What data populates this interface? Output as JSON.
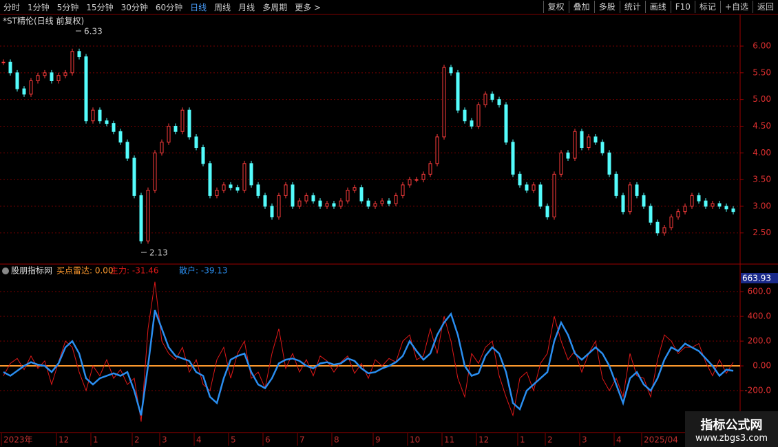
{
  "toolbar": {
    "left": [
      "分时",
      "1分钟",
      "5分钟",
      "15分钟",
      "30分钟",
      "60分钟",
      "日线",
      "周线",
      "月线",
      "多周期",
      "更多 >"
    ],
    "active_index": 6,
    "right": [
      "复权",
      "叠加",
      "多股",
      "统计",
      "画线",
      "F10",
      "标记",
      "+自选",
      "返回"
    ]
  },
  "watermark": {
    "title": "指标公式网",
    "url": "www.zbgs3.com"
  },
  "chart_data": [
    {
      "type": "candle-close",
      "title": "*ST精伦(日线 前复权)",
      "up_color": "#ff3c3c",
      "down_color": "#54fcfc",
      "high_label": "6.33",
      "low_label": "2.13",
      "categories": [
        "2023年",
        null,
        null,
        null,
        null,
        null,
        null,
        null,
        "12",
        null,
        null,
        null,
        null,
        "1",
        null,
        null,
        null,
        null,
        null,
        "2",
        null,
        null,
        null,
        "3",
        null,
        null,
        null,
        null,
        "4",
        null,
        null,
        null,
        null,
        "5",
        null,
        null,
        null,
        null,
        "6",
        null,
        null,
        null,
        null,
        "7",
        null,
        null,
        null,
        null,
        "8",
        null,
        null,
        null,
        null,
        null,
        "9",
        null,
        null,
        null,
        null,
        "10",
        null,
        null,
        null,
        null,
        "11",
        null,
        null,
        null,
        null,
        "12",
        null,
        null,
        null,
        null,
        null,
        "1",
        null,
        null,
        null,
        "2",
        null,
        null,
        null,
        null,
        "3",
        null,
        null,
        null,
        null,
        "4",
        null,
        null,
        null,
        "2025/04",
        null,
        null,
        null,
        null,
        null,
        null,
        null,
        null,
        null,
        null,
        null,
        null,
        null
      ],
      "values": [
        5.7,
        5.5,
        5.2,
        5.1,
        5.35,
        5.45,
        5.5,
        5.35,
        5.45,
        5.5,
        5.9,
        5.8,
        4.6,
        4.8,
        4.6,
        4.55,
        4.4,
        4.2,
        3.9,
        3.2,
        2.35,
        3.3,
        4.0,
        4.2,
        4.5,
        4.4,
        4.8,
        4.3,
        4.1,
        3.8,
        3.2,
        3.3,
        3.4,
        3.35,
        3.3,
        3.8,
        3.4,
        3.2,
        3.0,
        2.8,
        3.2,
        3.4,
        3.0,
        3.1,
        3.2,
        3.1,
        3.0,
        3.05,
        3.0,
        3.1,
        3.3,
        3.35,
        3.1,
        3.0,
        3.05,
        3.1,
        3.05,
        3.2,
        3.4,
        3.5,
        3.5,
        3.6,
        3.8,
        4.3,
        5.6,
        5.5,
        4.8,
        4.6,
        4.5,
        4.9,
        5.1,
        5.0,
        4.9,
        4.2,
        3.6,
        3.4,
        3.3,
        3.4,
        3.0,
        2.8,
        3.6,
        4.0,
        3.9,
        4.4,
        4.1,
        4.3,
        4.2,
        4.0,
        3.6,
        3.2,
        2.9,
        3.4,
        3.2,
        3.0,
        2.7,
        2.5,
        2.6,
        2.8,
        2.9,
        3.0,
        3.2,
        3.1,
        3.0,
        3.05,
        3.0,
        2.95,
        2.9
      ],
      "ylim": [
        1.93,
        6.58
      ],
      "yticks": [
        {
          "value": 2.5,
          "label": "2.50"
        },
        {
          "value": 3.0,
          "label": "3.00"
        },
        {
          "value": 3.5,
          "label": "3.50"
        },
        {
          "value": 4.0,
          "label": "4.00"
        },
        {
          "value": 4.5,
          "label": "4.50"
        },
        {
          "value": 5.0,
          "label": "5.00"
        },
        {
          "value": 5.5,
          "label": "5.50"
        },
        {
          "value": 6.0,
          "label": "6.00"
        }
      ],
      "grid": true
    },
    {
      "type": "line",
      "title": "股朋指标网",
      "radar_label": "买点雷达: 0.00",
      "top_label": "663.93",
      "series": [
        {
          "label": "主力: -31.46",
          "color": "#e01818",
          "width": 1,
          "values": [
            -80,
            20,
            60,
            -30,
            80,
            -20,
            40,
            -150,
            30,
            200,
            150,
            -50,
            -200,
            0,
            -80,
            50,
            -100,
            -30,
            -150,
            -100,
            -450,
            300,
            680,
            200,
            100,
            50,
            150,
            -50,
            50,
            -150,
            -200,
            50,
            150,
            -100,
            100,
            200,
            -100,
            -50,
            -180,
            100,
            300,
            -20,
            100,
            -50,
            50,
            -80,
            80,
            40,
            -50,
            30,
            80,
            -60,
            20,
            -100,
            50,
            0,
            60,
            30,
            200,
            250,
            50,
            80,
            300,
            100,
            400,
            200,
            -100,
            -250,
            100,
            20,
            150,
            200,
            -80,
            -250,
            -400,
            -100,
            -50,
            -200,
            20,
            100,
            400,
            200,
            50,
            120,
            -50,
            100,
            200,
            -100,
            -200,
            -100,
            -250,
            100,
            -80,
            -100,
            -250,
            50,
            250,
            200,
            100,
            150,
            150,
            180,
            30,
            -80,
            50,
            -60,
            30
          ]
        },
        {
          "label": "散户: -39.13",
          "color": "#2a8ef0",
          "width": 2.5,
          "values": [
            -50,
            -80,
            -40,
            0,
            30,
            10,
            0,
            -50,
            20,
            150,
            200,
            100,
            -100,
            -150,
            -100,
            -80,
            -60,
            -80,
            -50,
            -200,
            -400,
            0,
            450,
            300,
            150,
            80,
            60,
            40,
            -50,
            -80,
            -250,
            -300,
            -100,
            50,
            80,
            100,
            -50,
            -150,
            -180,
            -100,
            20,
            50,
            60,
            40,
            0,
            -20,
            20,
            30,
            10,
            20,
            60,
            40,
            -20,
            -60,
            -50,
            -20,
            0,
            30,
            80,
            200,
            120,
            50,
            100,
            250,
            350,
            420,
            250,
            0,
            -80,
            -60,
            80,
            150,
            100,
            -50,
            -300,
            -350,
            -200,
            -150,
            -100,
            -50,
            200,
            350,
            250,
            100,
            50,
            100,
            150,
            100,
            0,
            -150,
            -300,
            -100,
            -50,
            -150,
            -200,
            -100,
            50,
            150,
            120,
            180,
            150,
            120,
            60,
            0,
            -80,
            -30,
            -40
          ]
        }
      ],
      "ylim": [
        -533,
        717
      ],
      "yticks": [
        {
          "value": -200,
          "label": "-200.0"
        },
        {
          "value": 0,
          "label": "0.00"
        },
        {
          "value": 200,
          "label": "200.0"
        },
        {
          "value": 400,
          "label": "400.0"
        },
        {
          "value": 600,
          "label": "600.0"
        }
      ],
      "zero_line_color": "#ff9a2e",
      "grid": true
    }
  ]
}
